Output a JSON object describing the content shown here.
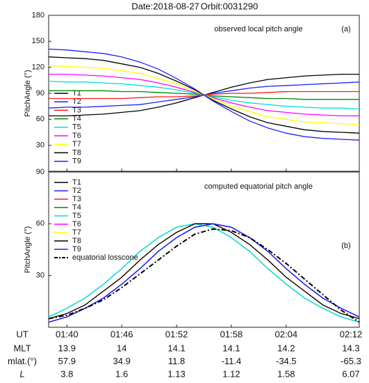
{
  "header": {
    "date": "Date:2018-08-27",
    "orbit": "Orbit:0031290"
  },
  "chart_data": [
    {
      "type": "line",
      "panel_label": "(a)",
      "annotation": "observed local pitch angle",
      "ylabel": "PitchAngle (°)",
      "x": [
        "01:38",
        "01:40",
        "01:42",
        "01:44",
        "01:46",
        "01:48",
        "01:50",
        "01:52",
        "01:54",
        "01:56",
        "01:58",
        "02:00",
        "02:02",
        "02:04",
        "02:06",
        "02:08",
        "02:10",
        "02:12"
      ],
      "xlim": [
        "01:38",
        "02:12"
      ],
      "xticks": [
        "01:40",
        "01:46",
        "01:52",
        "01:58",
        "02:04",
        "02:12"
      ],
      "ylim": [
        0,
        180
      ],
      "yticks": [
        30,
        60,
        90,
        120,
        150,
        180
      ],
      "series": [
        {
          "name": "T1",
          "color": "#000000",
          "values": [
            64,
            64,
            65,
            66,
            68,
            70,
            74,
            79,
            85,
            91,
            97,
            102,
            106,
            108,
            110,
            111,
            112,
            112
          ]
        },
        {
          "name": "T2",
          "color": "#2020ff",
          "values": [
            73,
            74,
            74,
            75,
            76,
            77,
            80,
            83,
            86,
            90,
            93,
            96,
            98,
            99,
            100,
            101,
            102,
            103
          ]
        },
        {
          "name": "T3",
          "color": "#ff1a1a",
          "values": [
            84,
            84,
            84,
            84,
            84,
            85,
            86,
            86,
            87,
            89,
            90,
            90,
            91,
            92,
            92,
            92,
            92,
            92
          ]
        },
        {
          "name": "T4",
          "color": "#008a00",
          "values": [
            93,
            93,
            93,
            93,
            92,
            92,
            91,
            90,
            89,
            87,
            86,
            85,
            84,
            84,
            83,
            83,
            83,
            83
          ]
        },
        {
          "name": "T5",
          "color": "#00e0e0",
          "values": [
            104,
            103,
            103,
            102,
            101,
            99,
            97,
            94,
            90,
            86,
            82,
            79,
            77,
            75,
            74,
            73,
            73,
            72
          ]
        },
        {
          "name": "T6",
          "color": "#ff00ff",
          "values": [
            112,
            112,
            111,
            110,
            108,
            106,
            102,
            97,
            91,
            85,
            79,
            74,
            70,
            68,
            66,
            65,
            64,
            64
          ]
        },
        {
          "name": "T7",
          "color": "#ffff00",
          "values": [
            122,
            121,
            120,
            119,
            116,
            113,
            107,
            101,
            92,
            84,
            75,
            69,
            63,
            60,
            57,
            56,
            55,
            54
          ]
        },
        {
          "name": "T8",
          "color": "#000000",
          "values": [
            132,
            131,
            130,
            128,
            124,
            120,
            113,
            104,
            94,
            82,
            72,
            63,
            56,
            52,
            48,
            46,
            45,
            44
          ]
        },
        {
          "name": "T9",
          "color": "#2020ff",
          "values": [
            141,
            140,
            138,
            136,
            132,
            126,
            118,
            107,
            95,
            81,
            69,
            58,
            50,
            44,
            40,
            38,
            37,
            36
          ]
        }
      ]
    },
    {
      "type": "line",
      "panel_label": "(b)",
      "annotation": "computed equatorial pitch angle",
      "ylabel": "PitchAngle (°)",
      "xlabel": "UT",
      "x": [
        "01:38",
        "01:40",
        "01:42",
        "01:44",
        "01:46",
        "01:48",
        "01:50",
        "01:52",
        "01:54",
        "01:56",
        "01:58",
        "02:00",
        "02:02",
        "02:04",
        "02:06",
        "02:08",
        "02:10",
        "02:12"
      ],
      "xlim": [
        "01:38",
        "02:12"
      ],
      "xticks": [
        "01:40",
        "01:46",
        "01:52",
        "01:58",
        "02:04",
        "02:12"
      ],
      "ylim": [
        0,
        90
      ],
      "yticks": [
        30,
        60,
        90
      ],
      "series": [
        {
          "name": "T1",
          "color": "#000000",
          "values": [
            3,
            6,
            11,
            17,
            25,
            34,
            44,
            52,
            58,
            60,
            58,
            52,
            44,
            34,
            25,
            17,
            11,
            6
          ]
        },
        {
          "name": "T2",
          "color": "#2020ff",
          "values": [
            3,
            6,
            11,
            17,
            25,
            34,
            44,
            52,
            58,
            60,
            58,
            52,
            44,
            34,
            25,
            17,
            11,
            6
          ]
        },
        {
          "name": "T3",
          "color": "#ff1a1a",
          "values": [
            5,
            8,
            13,
            21,
            29,
            39,
            48,
            55,
            60,
            60,
            55,
            48,
            39,
            29,
            21,
            13,
            8,
            5
          ]
        },
        {
          "name": "T4",
          "color": "#008a00",
          "values": [
            6,
            11,
            17,
            25,
            34,
            44,
            52,
            58,
            60,
            58,
            52,
            44,
            34,
            25,
            17,
            11,
            6,
            3
          ]
        },
        {
          "name": "T5",
          "color": "#00e0e0",
          "values": [
            6,
            11,
            17,
            25,
            34,
            44,
            52,
            58,
            60,
            58,
            52,
            44,
            34,
            25,
            17,
            11,
            6,
            3
          ]
        },
        {
          "name": "T6",
          "color": "#ff00ff",
          "values": [
            5,
            8,
            13,
            21,
            29,
            39,
            48,
            55,
            60,
            60,
            55,
            48,
            39,
            29,
            21,
            13,
            8,
            5
          ]
        },
        {
          "name": "T7",
          "color": "#ffff00",
          "values": [
            5,
            8,
            13,
            21,
            29,
            39,
            48,
            55,
            60,
            60,
            55,
            48,
            39,
            29,
            21,
            13,
            8,
            5
          ]
        },
        {
          "name": "T8",
          "color": "#000000",
          "values": [
            5,
            8,
            13,
            21,
            29,
            39,
            48,
            55,
            60,
            60,
            55,
            48,
            39,
            29,
            21,
            13,
            8,
            5
          ]
        },
        {
          "name": "T9",
          "color": "#2020ff",
          "values": [
            3,
            6,
            11,
            17,
            25,
            34,
            44,
            52,
            58,
            60,
            58,
            52,
            44,
            34,
            25,
            17,
            11,
            6
          ]
        },
        {
          "name": "equatorial losscone",
          "color": "#000000",
          "dashed": true,
          "values": [
            5,
            7,
            11,
            16,
            23,
            31,
            39,
            47,
            54,
            57,
            56,
            52,
            45,
            37,
            28,
            19,
            10,
            3
          ]
        }
      ]
    }
  ],
  "table": {
    "rows": [
      {
        "label": "MLT",
        "values": [
          13.9,
          14,
          14.1,
          14.1,
          14.2,
          14.3
        ]
      },
      {
        "label": "mlat.(°)",
        "values": [
          57.9,
          34.9,
          11.8,
          -11.4,
          -34.5,
          -65.3
        ]
      },
      {
        "label": "L",
        "italic": true,
        "values": [
          3.8,
          1.6,
          1.13,
          1.12,
          1.58,
          6.07
        ]
      }
    ]
  }
}
